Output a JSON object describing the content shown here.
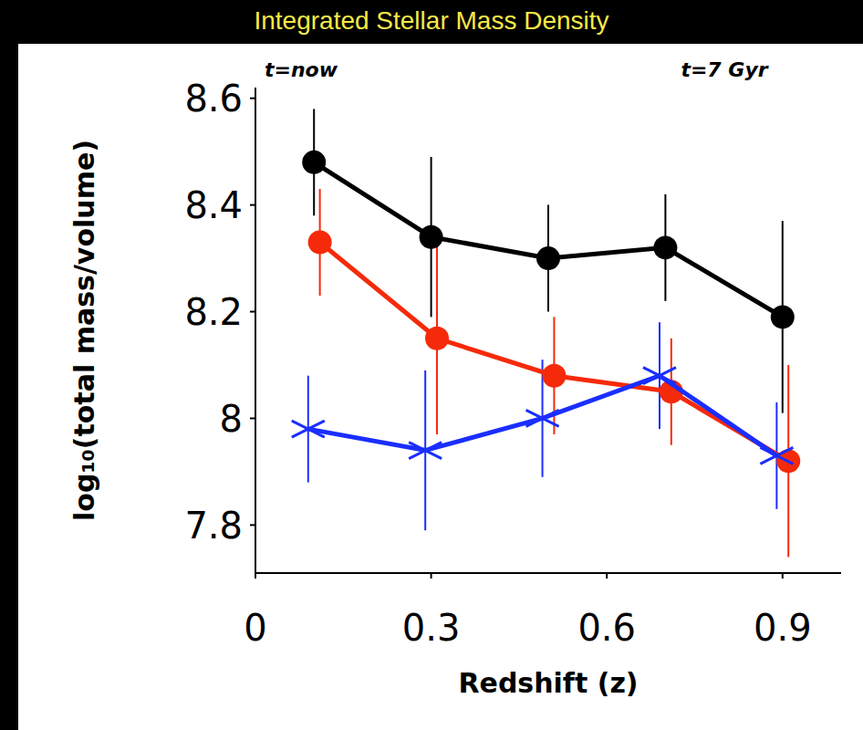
{
  "chart_data": {
    "type": "line",
    "title": "Integrated Stellar Mass Density",
    "annotations": [
      "t=now",
      "t=7 Gyr"
    ],
    "x_label": "Redshift (z)",
    "y_label": "log₁₀(total mass/volume)",
    "xlim": [
      0,
      1
    ],
    "xticks": [
      0,
      0.3,
      0.6,
      0.9
    ],
    "ylim": [
      7.71,
      8.62
    ],
    "yticks": [
      7.8,
      8,
      8.2,
      8.4,
      8.6
    ],
    "grid": false,
    "series": [
      {
        "color": "#000000",
        "marker": "circle",
        "line_style": "solid",
        "x": [
          0.1,
          0.3,
          0.5,
          0.7,
          0.9
        ],
        "values": [
          8.48,
          8.34,
          8.3,
          8.32,
          8.19
        ],
        "errors": [
          0.1,
          0.15,
          0.1,
          0.1,
          0.18
        ]
      },
      {
        "color": "#f52a0a",
        "marker": "circle",
        "line_style": "solid",
        "x": [
          0.11,
          0.31,
          0.51,
          0.71,
          0.91
        ],
        "values": [
          8.33,
          8.15,
          8.08,
          8.05,
          7.92
        ],
        "errors": [
          0.1,
          0.18,
          0.11,
          0.1,
          0.18
        ]
      },
      {
        "color": "#1a2eff",
        "marker": "x",
        "line_style": "solid",
        "x": [
          0.09,
          0.29,
          0.49,
          0.69,
          0.89
        ],
        "values": [
          7.98,
          7.94,
          8.0,
          8.08,
          7.93
        ],
        "errors": [
          0.1,
          0.15,
          0.11,
          0.1,
          0.1
        ]
      }
    ]
  }
}
